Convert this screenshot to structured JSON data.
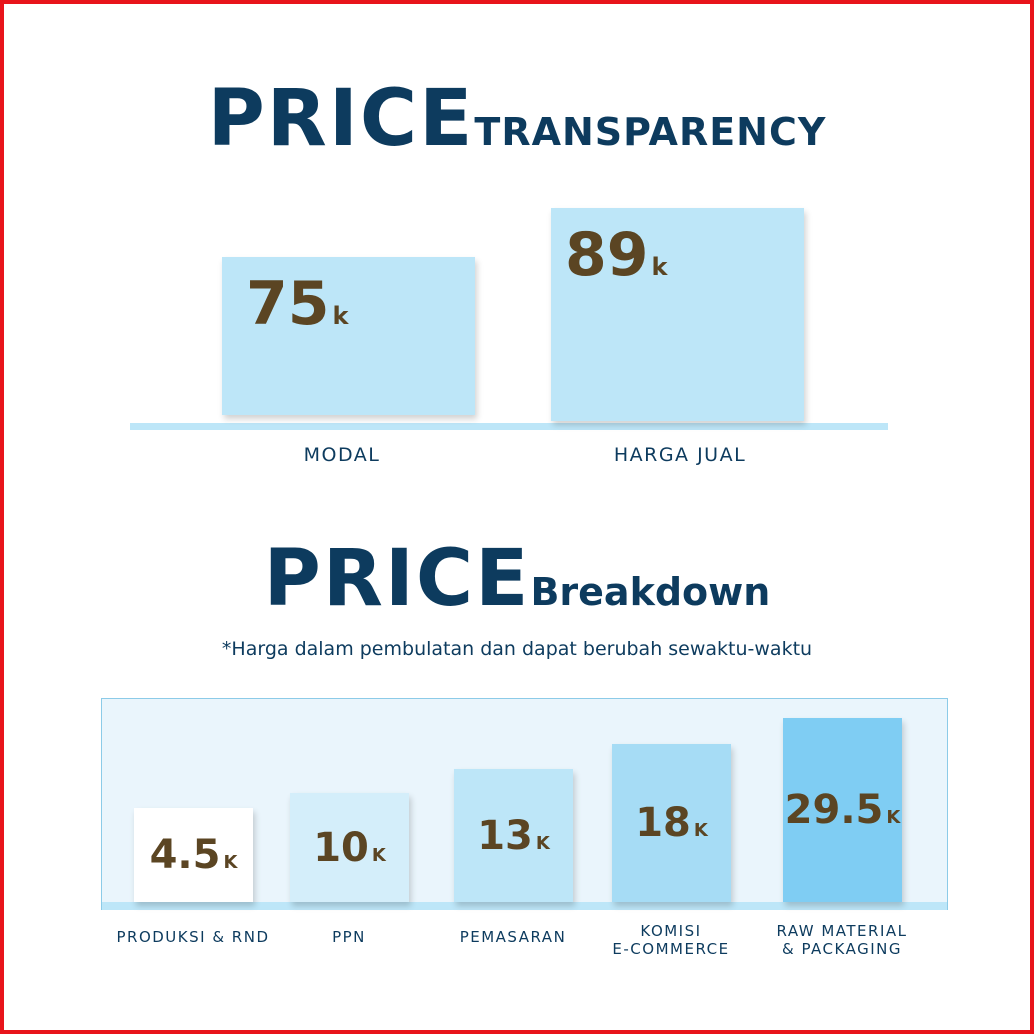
{
  "transparency": {
    "title_big": "PRICE",
    "title_small": "TRANSPARENCY",
    "items": [
      {
        "value": "75",
        "unit": "k",
        "label": "MODAL"
      },
      {
        "value": "89",
        "unit": "k",
        "label": "HARGA JUAL"
      }
    ]
  },
  "breakdown": {
    "title_big": "PRICE",
    "title_small": "Breakdown",
    "note": "*Harga dalam pembulatan dan dapat berubah sewaktu-waktu",
    "items": [
      {
        "value": "4.5",
        "unit": "K",
        "label": [
          "PRODUKSI & RND"
        ]
      },
      {
        "value": "10",
        "unit": "K",
        "label": [
          "PPN"
        ]
      },
      {
        "value": "13",
        "unit": "K",
        "label": [
          "PEMASARAN"
        ]
      },
      {
        "value": "18",
        "unit": "K",
        "label": [
          "KOMISI",
          "E-COMMERCE"
        ]
      },
      {
        "value": "29.5",
        "unit": "K",
        "label": [
          "RAW MATERIAL",
          "& PACKAGING"
        ]
      }
    ]
  }
}
